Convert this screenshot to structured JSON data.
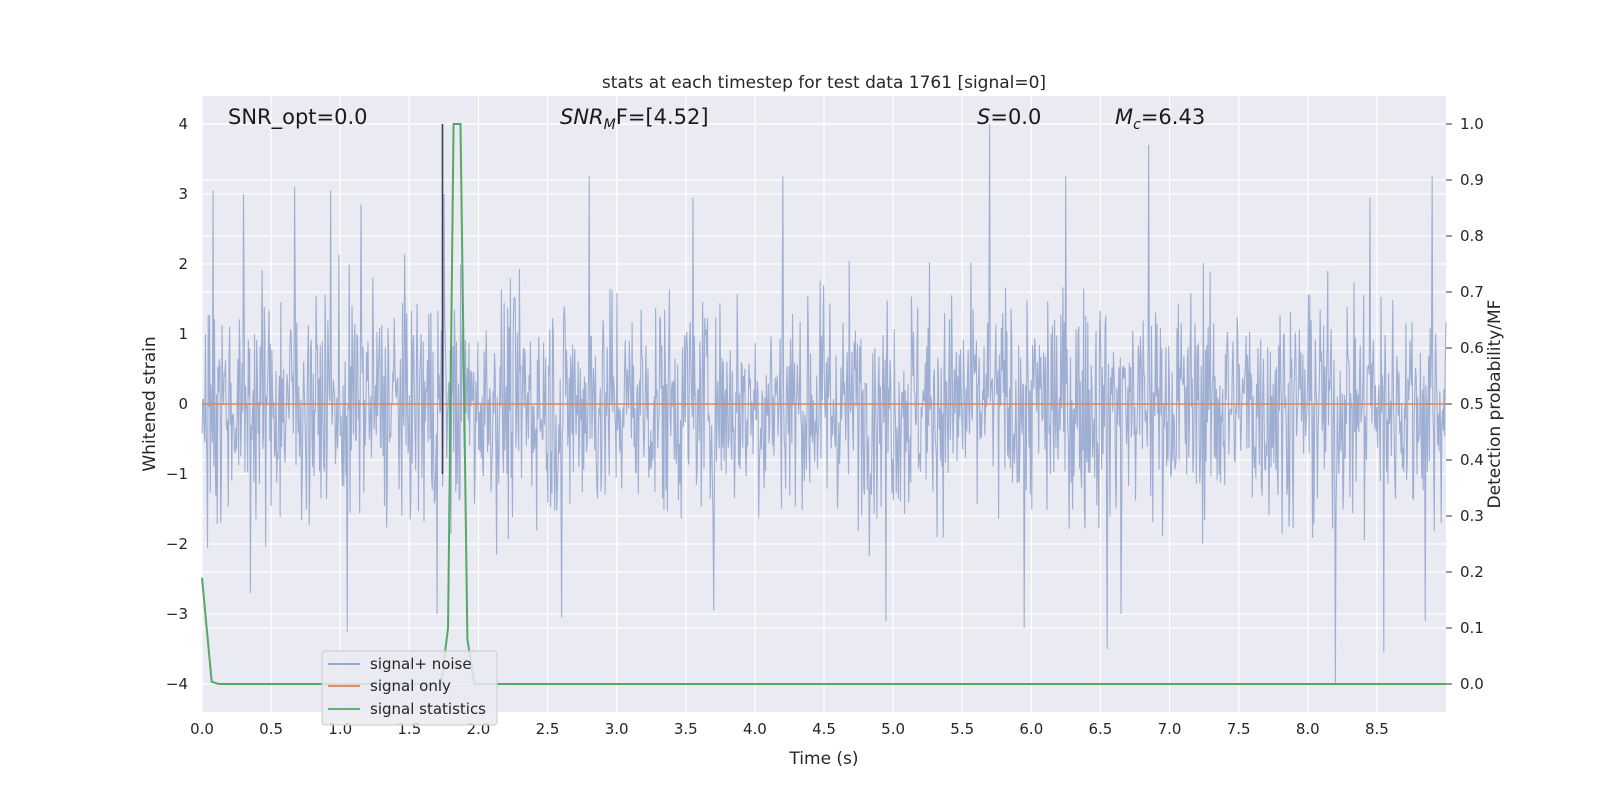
{
  "chart_data": {
    "type": "line",
    "title": "stats at each timestep for test data 1761 [signal=0]",
    "xlabel": "Time (s)",
    "ylabel_left": "Whitened strain",
    "ylabel_right": "Detection probability/MF",
    "xlim": [
      0.0,
      9.0
    ],
    "ylim_left": [
      -4.4,
      4.4
    ],
    "ylim_right": [
      -0.05,
      1.05
    ],
    "xticks": [
      "0.0",
      "0.5",
      "1.0",
      "1.5",
      "2.0",
      "2.5",
      "3.0",
      "3.5",
      "4.0",
      "4.5",
      "5.0",
      "5.5",
      "6.0",
      "6.5",
      "7.0",
      "7.5",
      "8.0",
      "8.5"
    ],
    "yticks_left": [
      "4",
      "3",
      "2",
      "1",
      "0",
      "−1",
      "−2",
      "−3",
      "−4"
    ],
    "yticks_right": [
      "1.0",
      "0.9",
      "0.8",
      "0.7",
      "0.6",
      "0.5",
      "0.4",
      "0.3",
      "0.2",
      "0.1",
      "0.0"
    ],
    "grid": true,
    "legend_position": "lower-left",
    "annotations": {
      "snr_opt": "SNR_opt=0.0",
      "snr_mf_main": "SNR",
      "snr_mf_sub": "M",
      "snr_mf_rest": "F=[4.52]",
      "s_main": "S",
      "s_rest": "=0.0",
      "mc_main": "M",
      "mc_sub": "c",
      "mc_rest": "=6.43"
    },
    "marker_line_x": 1.74,
    "series": [
      {
        "name": "signal+ noise",
        "color": "#8fa3cc",
        "kind": "noise",
        "approx_std": 0.8,
        "upper_spikes": [
          [
            0.08,
            3.05
          ],
          [
            0.3,
            3.0
          ],
          [
            0.67,
            3.1
          ],
          [
            0.93,
            3.05
          ],
          [
            1.15,
            2.85
          ],
          [
            1.75,
            3.0
          ],
          [
            2.8,
            3.25
          ],
          [
            3.55,
            2.95
          ],
          [
            4.2,
            3.25
          ],
          [
            5.7,
            4.0
          ],
          [
            6.25,
            3.25
          ],
          [
            6.85,
            3.7
          ],
          [
            8.45,
            2.95
          ],
          [
            8.9,
            3.25
          ]
        ],
        "lower_spikes": [
          [
            0.35,
            -2.7
          ],
          [
            1.05,
            -3.25
          ],
          [
            1.7,
            -3.0
          ],
          [
            2.6,
            -3.05
          ],
          [
            3.7,
            -2.95
          ],
          [
            4.95,
            -3.1
          ],
          [
            5.95,
            -3.2
          ],
          [
            6.55,
            -3.5
          ],
          [
            6.65,
            -3.0
          ],
          [
            8.2,
            -4.0
          ],
          [
            8.55,
            -3.55
          ],
          [
            8.85,
            -3.1
          ]
        ]
      },
      {
        "name": "signal only",
        "color": "#dd8452",
        "x": [
          0.0,
          9.0
        ],
        "y": [
          0.0,
          0.0
        ]
      },
      {
        "name": "signal statistics",
        "color": "#55a868",
        "axis": "right",
        "x": [
          0.0,
          0.07,
          0.12,
          1.73,
          1.78,
          1.82,
          1.87,
          1.92,
          1.97,
          9.0
        ],
        "y": [
          0.19,
          0.004,
          0.0,
          0.0,
          0.1,
          1.0,
          1.0,
          0.08,
          0.0,
          0.0
        ]
      }
    ]
  }
}
